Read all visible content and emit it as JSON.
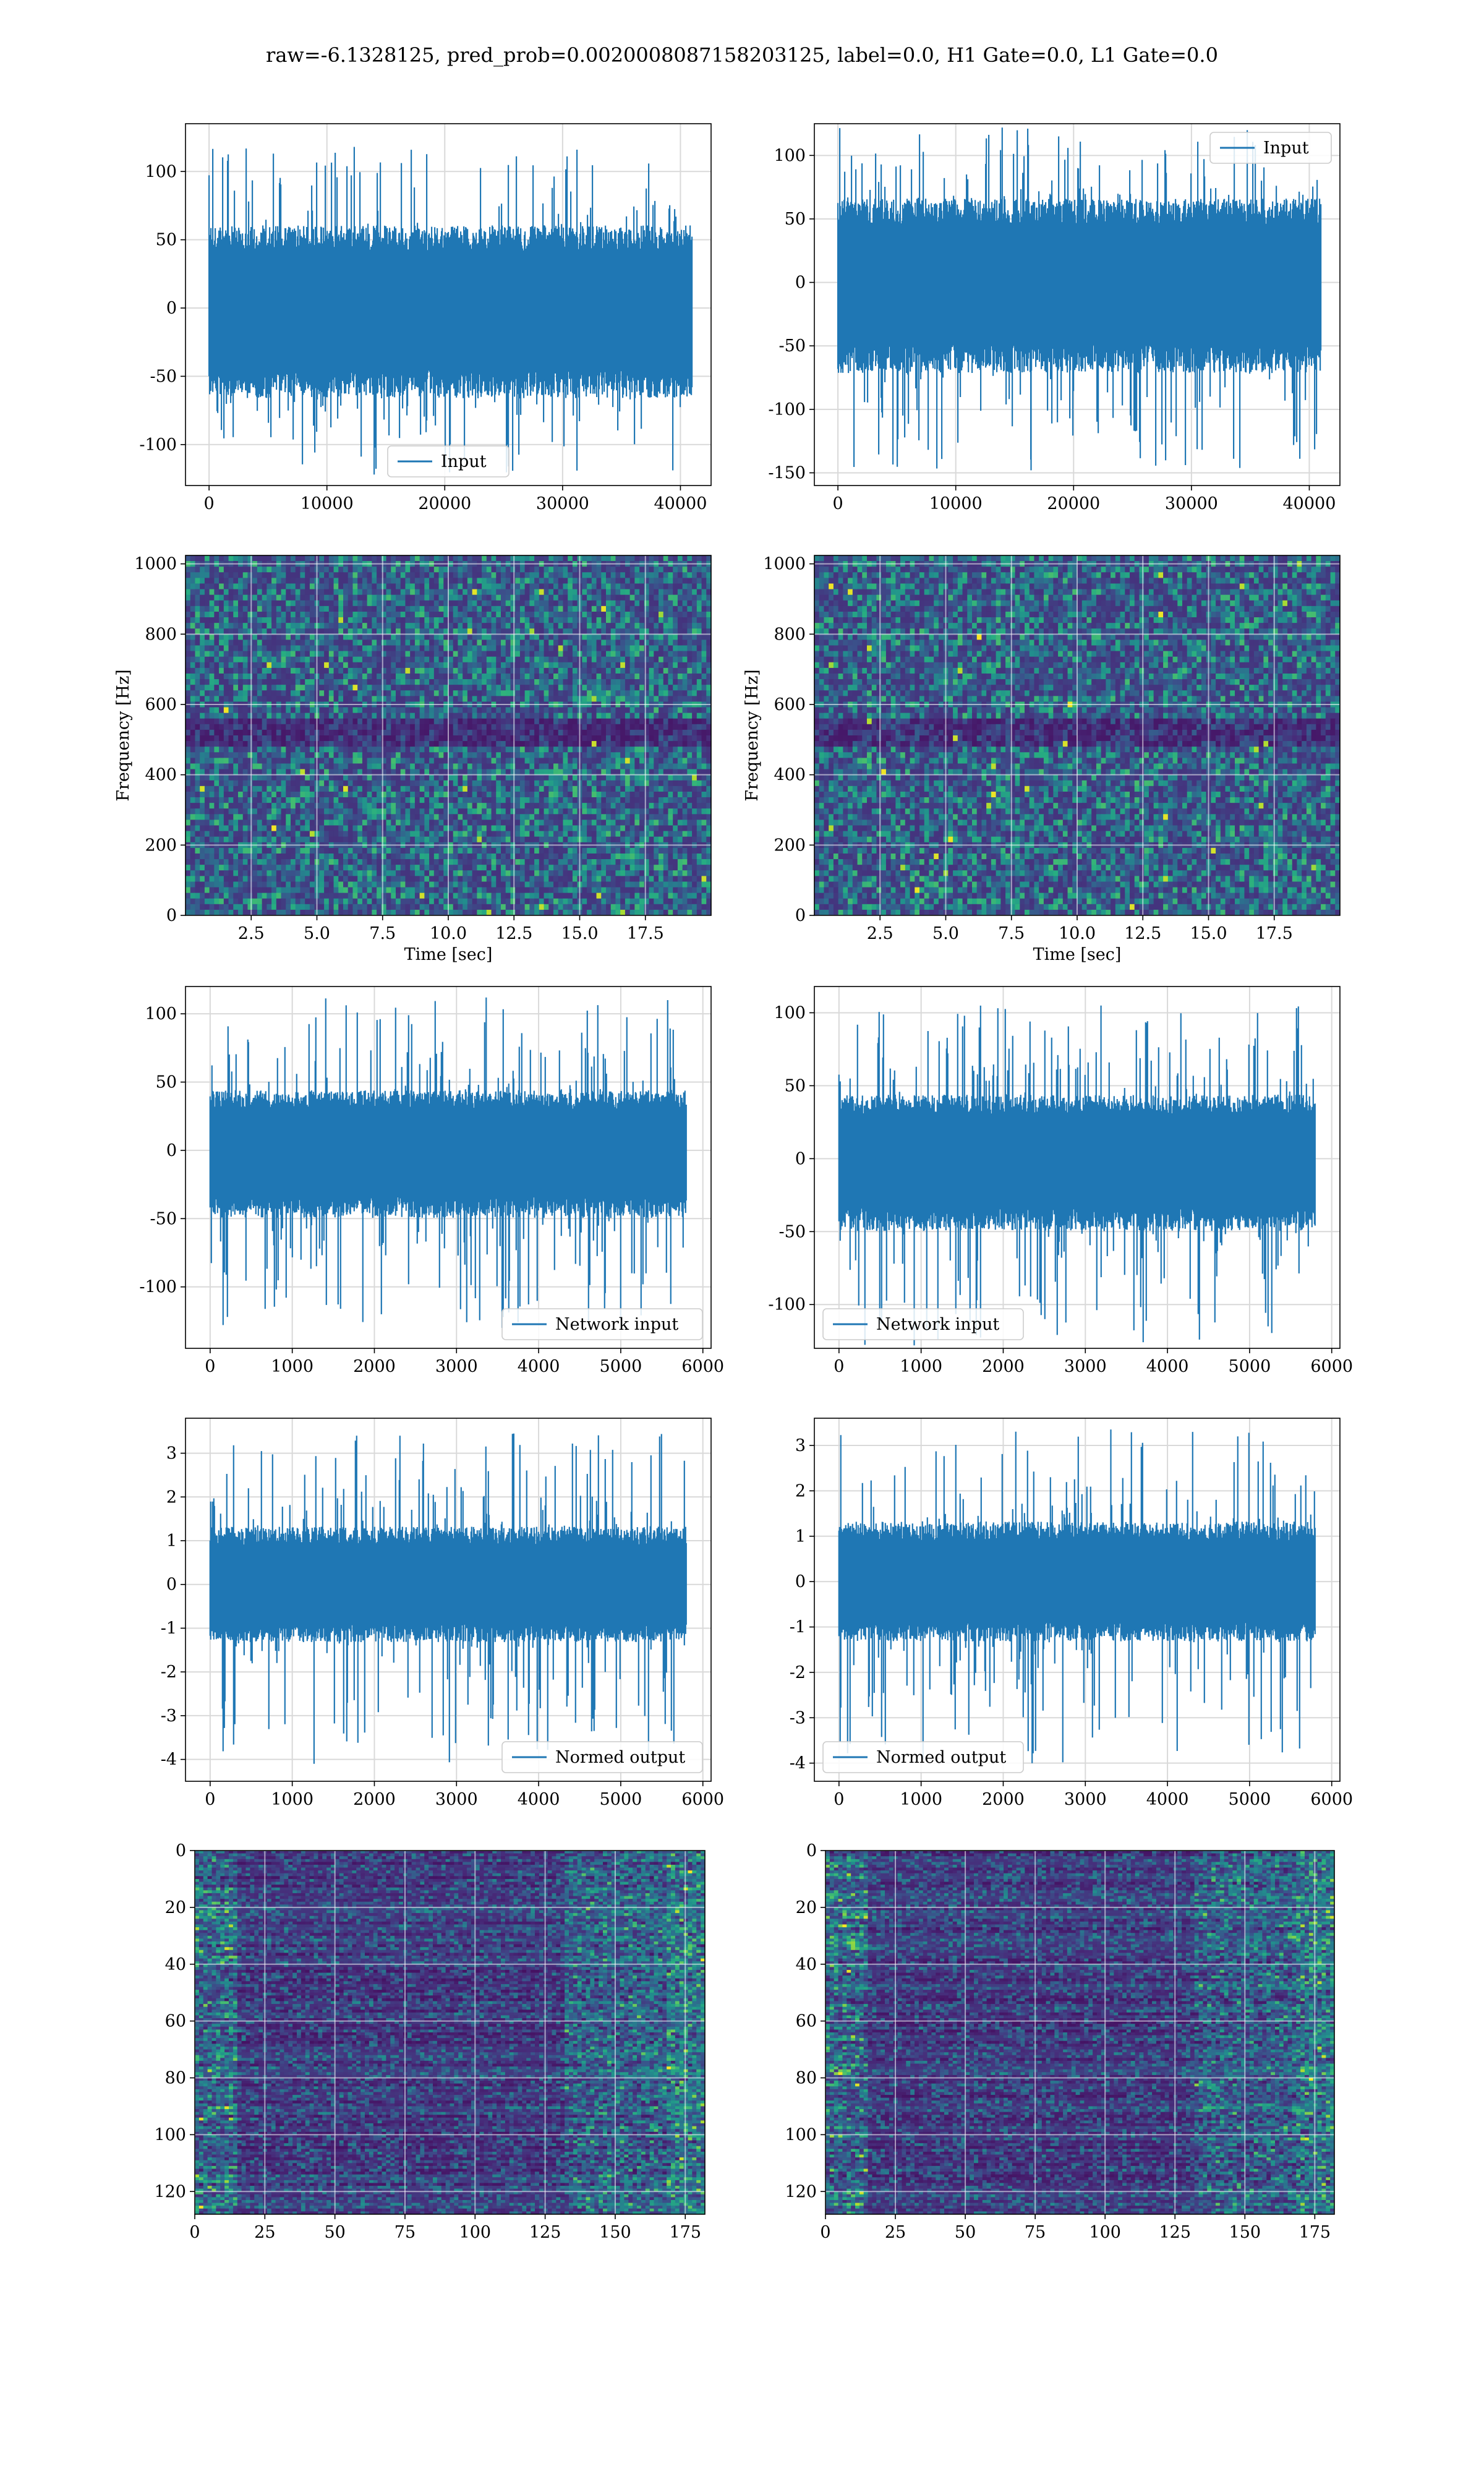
{
  "figure": {
    "suptitle": "raw=-6.1328125, pred_prob=0.0020008087158203125, label=0.0, H1 Gate=0.0, L1 Gate=0.0"
  },
  "chart_data": [
    {
      "id": "r0c0",
      "type": "line",
      "row": 0,
      "col": 0,
      "series": [
        {
          "name": "Input",
          "color": "#1f77b4"
        }
      ],
      "legend": "lower center",
      "xlim": [
        -2000,
        42600
      ],
      "ylim": [
        -130,
        135
      ],
      "xticks": [
        0,
        10000,
        20000,
        30000,
        40000
      ],
      "yticks": [
        -100,
        -50,
        0,
        50,
        100
      ],
      "signal": {
        "n_points": 40960,
        "band_low": -60,
        "band_high": 55,
        "min": -122,
        "max": 118
      },
      "grid": true
    },
    {
      "id": "r0c1",
      "type": "line",
      "row": 0,
      "col": 1,
      "series": [
        {
          "name": "Input",
          "color": "#1f77b4"
        }
      ],
      "legend": "upper right",
      "xlim": [
        -2000,
        42600
      ],
      "ylim": [
        -160,
        125
      ],
      "xticks": [
        0,
        10000,
        20000,
        30000,
        40000
      ],
      "yticks": [
        -150,
        -100,
        -50,
        0,
        50,
        100
      ],
      "signal": {
        "n_points": 40960,
        "band_low": -65,
        "band_high": 60,
        "min": -148,
        "max": 122
      },
      "grid": true
    },
    {
      "id": "r1c0",
      "type": "heatmap",
      "row": 1,
      "col": 0,
      "xlabel": "Time [sec]",
      "ylabel": "Frequency [Hz]",
      "xlim": [
        0,
        20
      ],
      "ylim": [
        0,
        1024
      ],
      "xticks": [
        "2.5",
        "5.0",
        "7.5",
        "10.0",
        "12.5",
        "15.0",
        "17.5"
      ],
      "yticks": [
        "0",
        "200",
        "400",
        "600",
        "800",
        "1000"
      ],
      "colormap": "viridis",
      "grid": true
    },
    {
      "id": "r1c1",
      "type": "heatmap",
      "row": 1,
      "col": 1,
      "xlabel": "Time [sec]",
      "ylabel": "Frequency [Hz]",
      "xlim": [
        0,
        20
      ],
      "ylim": [
        0,
        1024
      ],
      "xticks": [
        "2.5",
        "5.0",
        "7.5",
        "10.0",
        "12.5",
        "15.0",
        "17.5"
      ],
      "yticks": [
        "0",
        "200",
        "400",
        "600",
        "800",
        "1000"
      ],
      "colormap": "viridis",
      "grid": true
    },
    {
      "id": "r2c0",
      "type": "line",
      "row": 2,
      "col": 0,
      "series": [
        {
          "name": "Network input",
          "color": "#1f77b4"
        }
      ],
      "legend": "lower right",
      "xlim": [
        -300,
        6100
      ],
      "ylim": [
        -145,
        120
      ],
      "xticks": [
        0,
        1000,
        2000,
        3000,
        4000,
        5000,
        6000
      ],
      "yticks": [
        -100,
        -50,
        0,
        50,
        100
      ],
      "signal": {
        "n_points": 5800,
        "band_low": -45,
        "band_high": 40,
        "min": -130,
        "max": 112
      },
      "grid": true
    },
    {
      "id": "r2c1",
      "type": "line",
      "row": 2,
      "col": 1,
      "series": [
        {
          "name": "Network input",
          "color": "#1f77b4"
        }
      ],
      "legend": "lower left",
      "xlim": [
        -300,
        6100
      ],
      "ylim": [
        -130,
        118
      ],
      "xticks": [
        0,
        1000,
        2000,
        3000,
        4000,
        5000,
        6000
      ],
      "yticks": [
        -100,
        -50,
        0,
        50,
        100
      ],
      "signal": {
        "n_points": 5800,
        "band_low": -45,
        "band_high": 40,
        "min": -128,
        "max": 105
      },
      "grid": true
    },
    {
      "id": "r3c0",
      "type": "line",
      "row": 3,
      "col": 0,
      "series": [
        {
          "name": "Normed output",
          "color": "#1f77b4"
        }
      ],
      "legend": "lower right",
      "xlim": [
        -300,
        6100
      ],
      "ylim": [
        -4.5,
        3.8
      ],
      "xticks": [
        0,
        1000,
        2000,
        3000,
        4000,
        5000,
        6000
      ],
      "yticks": [
        -4,
        -3,
        -2,
        -1,
        0,
        1,
        2,
        3
      ],
      "signal": {
        "n_points": 5800,
        "band_low": -1.2,
        "band_high": 1.2,
        "min": -4.1,
        "max": 3.45
      },
      "grid": true
    },
    {
      "id": "r3c1",
      "type": "line",
      "row": 3,
      "col": 1,
      "series": [
        {
          "name": "Normed output",
          "color": "#1f77b4"
        }
      ],
      "legend": "lower left",
      "xlim": [
        -300,
        6100
      ],
      "ylim": [
        -4.4,
        3.6
      ],
      "xticks": [
        0,
        1000,
        2000,
        3000,
        4000,
        5000,
        6000
      ],
      "yticks": [
        -4,
        -3,
        -2,
        -1,
        0,
        1,
        2,
        3
      ],
      "signal": {
        "n_points": 5800,
        "band_low": -1.2,
        "band_high": 1.2,
        "min": -4.0,
        "max": 3.35
      },
      "grid": true
    },
    {
      "id": "r4c0",
      "type": "heatmap",
      "row": 4,
      "col": 0,
      "xlim": [
        0,
        182
      ],
      "ylim": [
        128,
        0
      ],
      "xticks": [
        "0",
        "25",
        "50",
        "75",
        "100",
        "125",
        "150",
        "175"
      ],
      "yticks": [
        "0",
        "20",
        "40",
        "60",
        "80",
        "100",
        "120"
      ],
      "colormap": "viridis",
      "grid": true
    },
    {
      "id": "r4c1",
      "type": "heatmap",
      "row": 4,
      "col": 1,
      "xlim": [
        0,
        182
      ],
      "ylim": [
        128,
        0
      ],
      "xticks": [
        "0",
        "25",
        "50",
        "75",
        "100",
        "125",
        "150",
        "175"
      ],
      "yticks": [
        "0",
        "20",
        "40",
        "60",
        "80",
        "100",
        "120"
      ],
      "colormap": "viridis",
      "grid": true
    }
  ]
}
